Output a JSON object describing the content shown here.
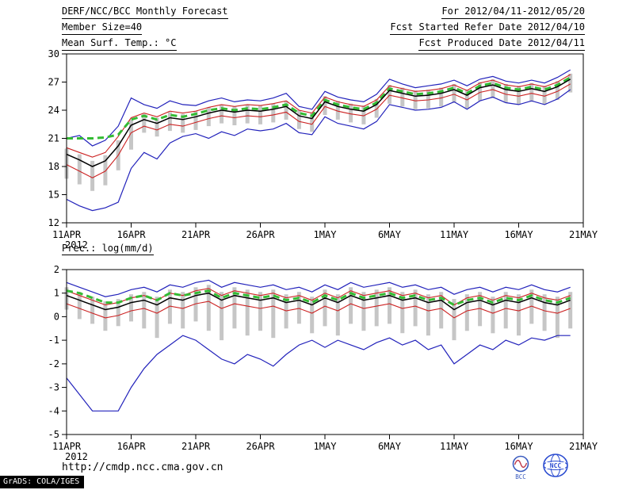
{
  "header": {
    "title": "DERF/NCC/BCC Monthly Forecast",
    "member_size": "Member Size=40",
    "temp_label": "Mean Surf. Temp.: °C",
    "for_range": "For 2012/04/11-2012/05/20",
    "fcst_started": "Fcst Started Refer Date 2012/04/10",
    "fcst_produced": "Fcst Produced Date 2012/04/11"
  },
  "footer": {
    "url": "http://cmdp.ncc.cma.gov.cn",
    "grads_stamp": "GrADS: COLA/IGES",
    "bcc_logo_label": "BCC",
    "ncc_logo_label": "NCC"
  },
  "chart_data": [
    {
      "id": "temp",
      "type": "line",
      "title": "Mean Surf. Temp.: °C",
      "ylim": [
        12,
        30
      ],
      "yticks": [
        30,
        27,
        24,
        21,
        18,
        15,
        12
      ],
      "axis_days": 40,
      "x_tick_positions": [
        0,
        5,
        10,
        15,
        20,
        25,
        30,
        35,
        40
      ],
      "x_tick_labels": [
        "11APR",
        "16APR",
        "21APR",
        "26APR",
        "1MAY",
        "6MAY",
        "11MAY",
        "16MAY",
        "21MAY"
      ],
      "year_label": "2012",
      "grid": false,
      "series": [
        {
          "name": "ensemble_max",
          "color": "#2222bb",
          "style": "solid",
          "width": 1.2,
          "values": [
            21.0,
            21.3,
            20.2,
            20.8,
            22.3,
            25.3,
            24.6,
            24.2,
            25.0,
            24.6,
            24.5,
            25.0,
            25.3,
            24.9,
            25.1,
            25.0,
            25.3,
            25.8,
            24.4,
            24.1,
            26.0,
            25.4,
            25.1,
            24.9,
            25.7,
            27.3,
            26.8,
            26.4,
            26.6,
            26.8,
            27.2,
            26.6,
            27.3,
            27.6,
            27.1,
            26.9,
            27.2,
            26.9,
            27.5,
            28.3
          ]
        },
        {
          "name": "mean_plus_spread",
          "color": "#cc2222",
          "style": "solid",
          "width": 1.1,
          "values": [
            20.0,
            19.5,
            19.0,
            19.5,
            21.2,
            23.2,
            23.7,
            23.3,
            23.9,
            23.7,
            23.9,
            24.3,
            24.6,
            24.4,
            24.6,
            24.5,
            24.7,
            25.0,
            24.0,
            23.7,
            25.4,
            24.9,
            24.6,
            24.4,
            25.1,
            26.6,
            26.3,
            26.0,
            26.1,
            26.3,
            26.7,
            26.1,
            26.9,
            27.2,
            26.7,
            26.5,
            26.8,
            26.5,
            27.0,
            27.8
          ]
        },
        {
          "name": "mean_minus_spread",
          "color": "#cc2222",
          "style": "solid",
          "width": 1.1,
          "values": [
            18.2,
            17.5,
            16.8,
            17.5,
            19.2,
            21.6,
            22.3,
            21.9,
            22.5,
            22.3,
            22.7,
            23.1,
            23.4,
            23.2,
            23.4,
            23.3,
            23.5,
            23.8,
            22.8,
            22.5,
            24.4,
            23.9,
            23.6,
            23.4,
            24.1,
            25.6,
            25.3,
            25.0,
            25.1,
            25.3,
            25.7,
            25.1,
            25.9,
            26.2,
            25.7,
            25.5,
            25.8,
            25.5,
            26.0,
            26.8
          ]
        },
        {
          "name": "ensemble_min",
          "color": "#2222bb",
          "style": "solid",
          "width": 1.2,
          "values": [
            14.5,
            13.8,
            13.3,
            13.6,
            14.2,
            17.8,
            19.5,
            18.8,
            20.5,
            21.2,
            21.5,
            21.0,
            21.7,
            21.3,
            22.0,
            21.8,
            22.0,
            22.6,
            21.6,
            21.4,
            23.3,
            22.6,
            22.3,
            22.0,
            22.8,
            24.6,
            24.3,
            24.0,
            24.1,
            24.3,
            24.9,
            24.1,
            25.0,
            25.4,
            24.8,
            24.6,
            25.0,
            24.6,
            25.2,
            26.2
          ]
        },
        {
          "name": "climatology",
          "color": "#33bb33",
          "style": "dashed",
          "width": 3,
          "values": [
            21.0,
            21.0,
            21.0,
            21.1,
            21.4,
            23.0,
            23.4,
            23.0,
            23.5,
            23.3,
            23.6,
            24.0,
            24.2,
            24.0,
            24.2,
            24.1,
            24.3,
            24.6,
            23.7,
            23.4,
            25.1,
            24.6,
            24.3,
            24.1,
            24.8,
            26.3,
            26.0,
            25.7,
            25.8,
            26.0,
            26.4,
            25.8,
            26.6,
            26.9,
            26.4,
            26.2,
            26.5,
            26.2,
            26.7,
            27.5
          ]
        },
        {
          "name": "ensemble_mean",
          "color": "#000000",
          "style": "solid",
          "width": 1.5,
          "values": [
            19.3,
            18.7,
            18.0,
            18.6,
            20.2,
            22.4,
            23.0,
            22.6,
            23.2,
            23.0,
            23.3,
            23.7,
            24.0,
            23.8,
            24.0,
            23.9,
            24.1,
            24.4,
            23.4,
            23.1,
            24.9,
            24.4,
            24.1,
            23.9,
            24.6,
            26.1,
            25.8,
            25.5,
            25.6,
            25.8,
            26.2,
            25.6,
            26.4,
            26.7,
            26.2,
            26.0,
            26.3,
            26.0,
            26.5,
            27.3
          ]
        }
      ],
      "bars": {
        "name": "member_spread_bars",
        "color": "#c6c6c6",
        "high": [
          19.9,
          19.3,
          18.6,
          19.2,
          20.8,
          23.0,
          23.6,
          23.2,
          23.8,
          23.6,
          23.9,
          24.3,
          24.6,
          24.4,
          24.6,
          24.5,
          24.7,
          25.0,
          24.0,
          23.7,
          25.5,
          25.0,
          24.7,
          24.5,
          25.2,
          26.7,
          26.4,
          26.1,
          26.2,
          26.4,
          26.8,
          26.2,
          27.0,
          27.3,
          26.8,
          26.6,
          26.9,
          26.6,
          27.1,
          27.9
        ],
        "low": [
          16.7,
          16.1,
          15.4,
          16.0,
          17.6,
          19.8,
          21.6,
          21.2,
          21.8,
          21.6,
          21.9,
          22.3,
          22.6,
          22.4,
          22.6,
          22.5,
          22.7,
          23.0,
          22.0,
          21.7,
          23.5,
          23.0,
          22.7,
          22.5,
          23.2,
          24.7,
          24.4,
          24.1,
          24.2,
          24.4,
          24.8,
          24.2,
          25.0,
          25.3,
          24.8,
          24.6,
          24.9,
          24.6,
          25.1,
          25.9
        ]
      }
    },
    {
      "id": "precip",
      "type": "line",
      "title": "Prec.: log(mm/d)",
      "ylim": [
        -5,
        2
      ],
      "yticks": [
        2,
        1,
        0,
        -1,
        -2,
        -3,
        -4,
        -5
      ],
      "axis_days": 40,
      "x_tick_positions": [
        0,
        5,
        10,
        15,
        20,
        25,
        30,
        35,
        40
      ],
      "x_tick_labels": [
        "11APR",
        "16APR",
        "21APR",
        "26APR",
        "1MAY",
        "6MAY",
        "11MAY",
        "16MAY",
        "21MAY"
      ],
      "year_label": "2012",
      "grid": false,
      "series": [
        {
          "name": "ensemble_max",
          "color": "#2222bb",
          "style": "solid",
          "width": 1.2,
          "values": [
            1.45,
            1.25,
            1.05,
            0.85,
            0.95,
            1.15,
            1.25,
            1.05,
            1.35,
            1.25,
            1.45,
            1.55,
            1.25,
            1.45,
            1.35,
            1.25,
            1.35,
            1.15,
            1.25,
            1.05,
            1.35,
            1.15,
            1.45,
            1.25,
            1.35,
            1.45,
            1.25,
            1.35,
            1.15,
            1.25,
            0.95,
            1.15,
            1.25,
            1.05,
            1.25,
            1.15,
            1.35,
            1.15,
            1.05,
            1.25
          ]
        },
        {
          "name": "mean_plus_spread",
          "color": "#cc2222",
          "style": "solid",
          "width": 1.1,
          "values": [
            1.1,
            0.9,
            0.7,
            0.5,
            0.6,
            0.8,
            0.9,
            0.7,
            1.0,
            0.9,
            1.1,
            1.2,
            0.9,
            1.1,
            1.0,
            0.9,
            1.0,
            0.8,
            0.9,
            0.7,
            1.0,
            0.8,
            1.1,
            0.9,
            1.0,
            1.1,
            0.9,
            1.0,
            0.8,
            0.9,
            0.5,
            0.8,
            0.9,
            0.7,
            0.9,
            0.8,
            1.0,
            0.8,
            0.7,
            0.9
          ]
        },
        {
          "name": "mean_minus_spread",
          "color": "#cc2222",
          "style": "solid",
          "width": 1.1,
          "values": [
            0.55,
            0.35,
            0.15,
            -0.05,
            0.05,
            0.25,
            0.35,
            0.15,
            0.45,
            0.35,
            0.55,
            0.65,
            0.35,
            0.55,
            0.45,
            0.35,
            0.45,
            0.25,
            0.35,
            0.15,
            0.45,
            0.25,
            0.55,
            0.35,
            0.45,
            0.55,
            0.35,
            0.45,
            0.25,
            0.35,
            -0.05,
            0.25,
            0.35,
            0.15,
            0.35,
            0.25,
            0.45,
            0.25,
            0.15,
            0.35
          ]
        },
        {
          "name": "ensemble_min",
          "color": "#2222bb",
          "style": "solid",
          "width": 1.2,
          "values": [
            -2.6,
            -3.3,
            -4.0,
            -4.0,
            -4.0,
            -3.0,
            -2.2,
            -1.6,
            -1.2,
            -0.8,
            -1.0,
            -1.4,
            -1.8,
            -2.0,
            -1.6,
            -1.8,
            -2.1,
            -1.6,
            -1.2,
            -1.0,
            -1.3,
            -1.0,
            -1.2,
            -1.4,
            -1.1,
            -0.9,
            -1.2,
            -1.0,
            -1.4,
            -1.2,
            -2.0,
            -1.6,
            -1.2,
            -1.4,
            -1.0,
            -1.2,
            -0.9,
            -1.0,
            -0.8,
            -0.8
          ]
        },
        {
          "name": "climatology",
          "color": "#33bb33",
          "style": "dashed",
          "width": 3,
          "values": [
            1.1,
            1.0,
            0.8,
            0.6,
            0.6,
            0.8,
            0.9,
            0.7,
            1.0,
            0.9,
            1.0,
            1.1,
            0.8,
            1.0,
            0.9,
            0.8,
            0.9,
            0.7,
            0.8,
            0.6,
            0.9,
            0.7,
            1.0,
            0.8,
            0.9,
            1.0,
            0.8,
            0.9,
            0.7,
            0.8,
            0.5,
            0.7,
            0.8,
            0.6,
            0.8,
            0.7,
            0.9,
            0.7,
            0.6,
            0.8
          ]
        },
        {
          "name": "ensemble_mean",
          "color": "#000000",
          "style": "solid",
          "width": 1.5,
          "values": [
            0.9,
            0.7,
            0.5,
            0.3,
            0.4,
            0.6,
            0.7,
            0.5,
            0.8,
            0.7,
            0.9,
            1.0,
            0.7,
            0.9,
            0.8,
            0.7,
            0.8,
            0.6,
            0.7,
            0.5,
            0.8,
            0.6,
            0.9,
            0.7,
            0.8,
            0.9,
            0.7,
            0.8,
            0.6,
            0.7,
            0.3,
            0.6,
            0.7,
            0.5,
            0.7,
            0.6,
            0.8,
            0.6,
            0.5,
            0.7
          ]
        }
      ],
      "bars": {
        "name": "member_spread_bars",
        "color": "#c6c6c6",
        "high": [
          1.25,
          1.05,
          0.85,
          0.65,
          0.75,
          0.95,
          1.05,
          0.85,
          1.15,
          1.05,
          1.25,
          1.35,
          1.05,
          1.25,
          1.15,
          1.05,
          1.15,
          0.95,
          1.05,
          0.85,
          1.15,
          0.95,
          1.25,
          1.05,
          1.15,
          1.25,
          1.05,
          1.15,
          0.95,
          1.05,
          0.75,
          0.95,
          1.05,
          0.85,
          1.05,
          0.95,
          1.15,
          0.95,
          0.85,
          1.05
        ],
        "low": [
          0.3,
          -0.1,
          -0.3,
          -0.6,
          -0.4,
          -0.2,
          -0.5,
          -0.9,
          -0.3,
          -0.5,
          -0.2,
          -0.6,
          -1.0,
          -0.5,
          -0.8,
          -0.6,
          -0.9,
          -0.5,
          -0.3,
          -0.7,
          -0.4,
          -0.8,
          -0.3,
          -0.6,
          -0.4,
          -0.3,
          -0.7,
          -0.4,
          -0.8,
          -0.5,
          -1.0,
          -0.6,
          -0.4,
          -0.7,
          -0.5,
          -0.8,
          -0.3,
          -0.6,
          -0.9,
          -0.5
        ]
      }
    }
  ]
}
